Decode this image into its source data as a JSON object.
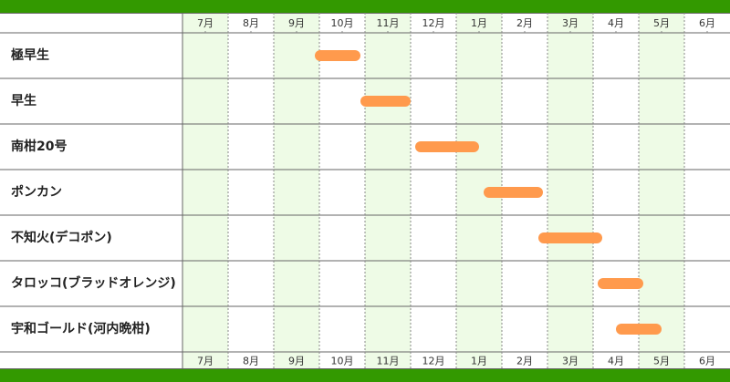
{
  "chart_data": {
    "type": "gantt",
    "categories": [
      "極早生",
      "早生",
      "南柑20号",
      "ポンカン",
      "不知火(デコポン)",
      "タロッコ(ブラッドオレンジ)",
      "宇和ゴールド(河内晩柑)"
    ],
    "start": [
      2.9,
      3.9,
      5.1,
      6.6,
      7.8,
      9.1,
      9.5
    ],
    "end": [
      3.9,
      5.0,
      6.5,
      7.9,
      9.2,
      10.1,
      10.5
    ],
    "color": "#ff9a4d",
    "xlim": [
      0,
      12
    ],
    "xticks": [
      {
        "value": 0.5,
        "label": "7月"
      },
      {
        "value": 1.5,
        "label": "8月"
      },
      {
        "value": 2.5,
        "label": "9月"
      },
      {
        "value": 3.5,
        "label": "10月"
      },
      {
        "value": 4.5,
        "label": "11月"
      },
      {
        "value": 5.5,
        "label": "12月"
      },
      {
        "value": 6.5,
        "label": "1月"
      },
      {
        "value": 7.5,
        "label": "2月"
      },
      {
        "value": 8.5,
        "label": "3月"
      },
      {
        "value": 9.5,
        "label": "4月"
      },
      {
        "value": 10.5,
        "label": "5月"
      },
      {
        "value": 11.5,
        "label": "6月"
      }
    ]
  }
}
